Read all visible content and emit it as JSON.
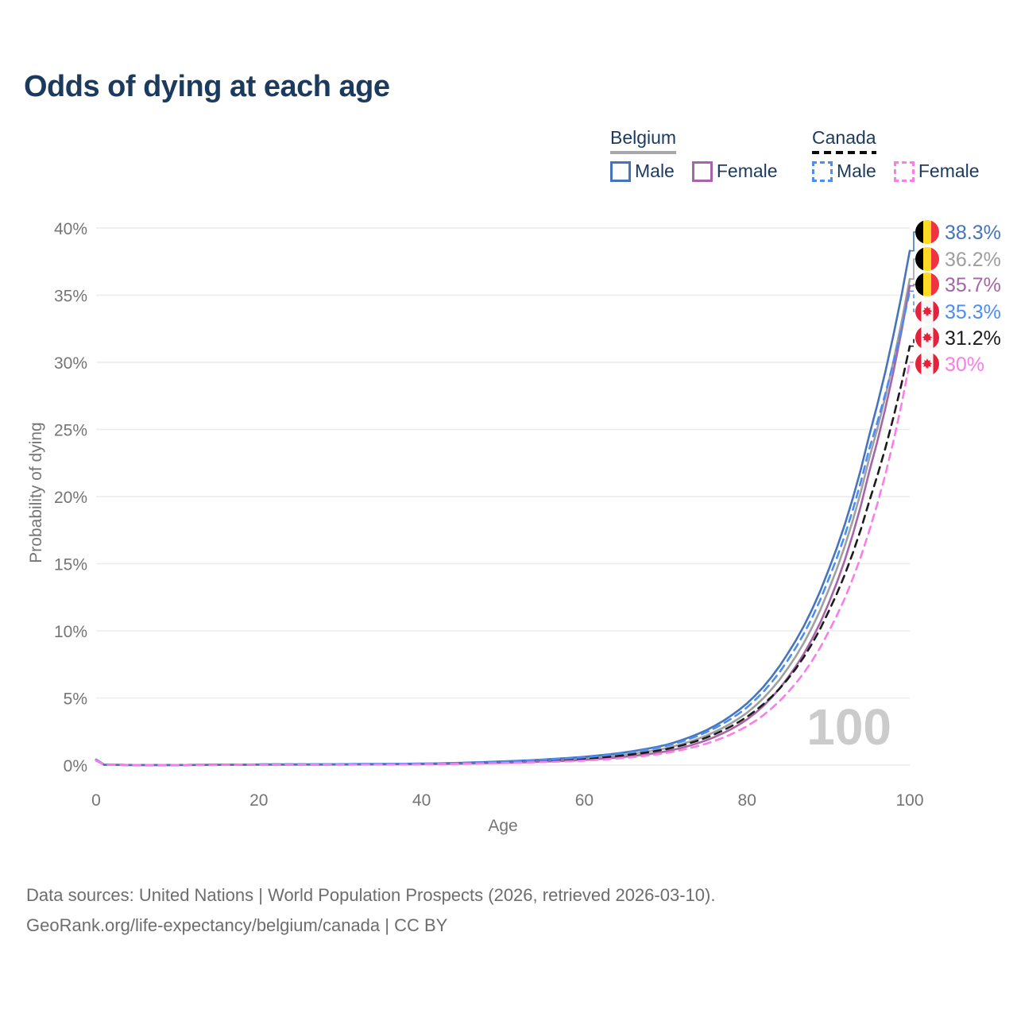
{
  "title": "Odds of dying at each age",
  "legend": {
    "groups": [
      {
        "label": "Belgium",
        "line_style": "solid",
        "underline_color": "#a8a8a8",
        "items": [
          {
            "label": "Male",
            "color": "#4574bd"
          },
          {
            "label": "Female",
            "color": "#a565a8"
          }
        ]
      },
      {
        "label": "Canada",
        "line_style": "dashed",
        "underline_color": "#0c0c0c",
        "items": [
          {
            "label": "Male",
            "color": "#4c8df5"
          },
          {
            "label": "Female",
            "color": "#fa7de8"
          }
        ]
      }
    ]
  },
  "watermark": "100",
  "footer": {
    "line1": "Data sources: United Nations | World Population Prospects (2026, retrieved 2026-03-10).",
    "line2": "GeoRank.org/life-expectancy/belgium/canada | CC BY"
  },
  "flags": {
    "belgium": {
      "black": "#000000",
      "yellow": "#FDDA24",
      "red": "#EF3340"
    },
    "canada": {
      "red": "#E6223A",
      "white": "#f7f7f7"
    }
  },
  "chart_data": {
    "type": "line",
    "title": "Odds of dying at each age",
    "xlabel": "Age",
    "ylabel": "Probability of dying",
    "xlim": [
      0,
      100
    ],
    "ylim": [
      0,
      40
    ],
    "x_ticks": [
      0,
      20,
      40,
      60,
      80,
      100
    ],
    "y_ticks": [
      0,
      5,
      10,
      15,
      20,
      25,
      30,
      35,
      40
    ],
    "y_tick_suffix": "%",
    "grid": "horizontal",
    "legend_position": "top-right",
    "hover_age_indicator": "100",
    "series": [
      {
        "name": "Belgium Male",
        "country": "Belgium",
        "sex": "Male",
        "color": "#4574bd",
        "dashed": false,
        "flag": "belgium",
        "end_value": 38.3,
        "end_label": "38.3%",
        "label_color": "#4574bd",
        "points": [
          [
            0,
            0.4
          ],
          [
            1,
            0.03
          ],
          [
            5,
            0.01
          ],
          [
            10,
            0.012
          ],
          [
            15,
            0.025
          ],
          [
            20,
            0.05
          ],
          [
            30,
            0.07
          ],
          [
            40,
            0.11
          ],
          [
            50,
            0.28
          ],
          [
            55,
            0.42
          ],
          [
            60,
            0.62
          ],
          [
            65,
            0.95
          ],
          [
            70,
            1.5
          ],
          [
            75,
            2.6
          ],
          [
            80,
            4.6
          ],
          [
            85,
            8.3
          ],
          [
            90,
            14.5
          ],
          [
            95,
            24.5
          ],
          [
            100,
            38.3
          ]
        ]
      },
      {
        "name": "Belgium Both sexes",
        "country": "Belgium",
        "sex": "Both",
        "color": "#a0a0a0",
        "dashed": false,
        "flag": "belgium",
        "end_value": 36.2,
        "end_label": "36.2%",
        "label_color": "#9e9e9e",
        "points": [
          [
            0,
            0.37
          ],
          [
            1,
            0.025
          ],
          [
            5,
            0.009
          ],
          [
            10,
            0.01
          ],
          [
            15,
            0.02
          ],
          [
            20,
            0.04
          ],
          [
            30,
            0.055
          ],
          [
            40,
            0.09
          ],
          [
            50,
            0.22
          ],
          [
            55,
            0.34
          ],
          [
            60,
            0.5
          ],
          [
            65,
            0.78
          ],
          [
            70,
            1.25
          ],
          [
            75,
            2.2
          ],
          [
            80,
            3.9
          ],
          [
            85,
            7.2
          ],
          [
            90,
            13.0
          ],
          [
            95,
            22.8
          ],
          [
            100,
            36.2
          ]
        ]
      },
      {
        "name": "Belgium Female",
        "country": "Belgium",
        "sex": "Female",
        "color": "#a565a8",
        "dashed": false,
        "flag": "belgium",
        "end_value": 35.7,
        "end_label": "35.7%",
        "label_color": "#a565a8",
        "points": [
          [
            0,
            0.34
          ],
          [
            1,
            0.022
          ],
          [
            5,
            0.008
          ],
          [
            10,
            0.009
          ],
          [
            15,
            0.015
          ],
          [
            20,
            0.03
          ],
          [
            30,
            0.04
          ],
          [
            40,
            0.07
          ],
          [
            50,
            0.17
          ],
          [
            55,
            0.26
          ],
          [
            60,
            0.39
          ],
          [
            65,
            0.62
          ],
          [
            70,
            1.02
          ],
          [
            75,
            1.85
          ],
          [
            80,
            3.4
          ],
          [
            85,
            6.5
          ],
          [
            90,
            12.0
          ],
          [
            95,
            21.8
          ],
          [
            100,
            35.7
          ]
        ]
      },
      {
        "name": "Canada Male",
        "country": "Canada",
        "sex": "Male",
        "color": "#4c8df5",
        "dashed": true,
        "flag": "canada",
        "end_value": 35.3,
        "end_label": "35.3%",
        "label_color": "#4c8df5",
        "points": [
          [
            0,
            0.42
          ],
          [
            1,
            0.03
          ],
          [
            5,
            0.01
          ],
          [
            10,
            0.012
          ],
          [
            15,
            0.03
          ],
          [
            20,
            0.055
          ],
          [
            30,
            0.075
          ],
          [
            40,
            0.11
          ],
          [
            50,
            0.26
          ],
          [
            55,
            0.4
          ],
          [
            60,
            0.58
          ],
          [
            65,
            0.9
          ],
          [
            70,
            1.42
          ],
          [
            75,
            2.45
          ],
          [
            80,
            4.3
          ],
          [
            85,
            7.8
          ],
          [
            90,
            13.8
          ],
          [
            95,
            23.5
          ],
          [
            100,
            35.3
          ]
        ]
      },
      {
        "name": "Canada Both sexes",
        "country": "Canada",
        "sex": "Both",
        "color": "#1c1c1c",
        "dashed": true,
        "flag": "canada",
        "end_value": 31.2,
        "end_label": "31.2%",
        "label_color": "#1c1c1c",
        "points": [
          [
            0,
            0.38
          ],
          [
            1,
            0.027
          ],
          [
            5,
            0.009
          ],
          [
            10,
            0.011
          ],
          [
            15,
            0.025
          ],
          [
            20,
            0.045
          ],
          [
            30,
            0.06
          ],
          [
            40,
            0.09
          ],
          [
            50,
            0.21
          ],
          [
            55,
            0.33
          ],
          [
            60,
            0.48
          ],
          [
            65,
            0.74
          ],
          [
            70,
            1.18
          ],
          [
            75,
            2.05
          ],
          [
            80,
            3.6
          ],
          [
            85,
            6.4
          ],
          [
            90,
            11.4
          ],
          [
            95,
            19.6
          ],
          [
            100,
            31.2
          ]
        ]
      },
      {
        "name": "Canada Female",
        "country": "Canada",
        "sex": "Female",
        "color": "#fa7de8",
        "dashed": true,
        "flag": "canada",
        "end_value": 30.0,
        "end_label": "30%",
        "label_color": "#fa7de8",
        "points": [
          [
            0,
            0.35
          ],
          [
            1,
            0.023
          ],
          [
            5,
            0.008
          ],
          [
            10,
            0.009
          ],
          [
            15,
            0.014
          ],
          [
            20,
            0.028
          ],
          [
            30,
            0.038
          ],
          [
            40,
            0.065
          ],
          [
            50,
            0.15
          ],
          [
            55,
            0.23
          ],
          [
            60,
            0.34
          ],
          [
            65,
            0.54
          ],
          [
            70,
            0.9
          ],
          [
            75,
            1.6
          ],
          [
            80,
            2.9
          ],
          [
            85,
            5.4
          ],
          [
            90,
            9.9
          ],
          [
            95,
            17.4
          ],
          [
            100,
            30.0
          ]
        ]
      }
    ]
  }
}
